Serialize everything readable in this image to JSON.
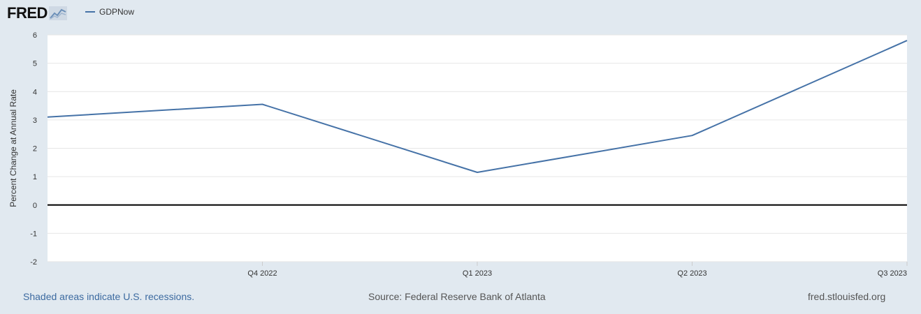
{
  "logo": {
    "text": "FRED"
  },
  "colors": {
    "series": "#4572a7",
    "zero_line": "#000000",
    "grid": "#e6e6e6",
    "plot_background": "#ffffff",
    "page_background": "#e1e9f0",
    "footer_link": "#3c6aa0"
  },
  "icons": {
    "logo_mark": "line-chart-icon"
  },
  "footer": {
    "note": "Shaded areas indicate U.S. recessions.",
    "source": "Source: Federal Reserve Bank of Atlanta",
    "url": "fred.stlouisfed.org"
  },
  "chart_data": {
    "type": "line",
    "title": "",
    "xlabel": "",
    "ylabel": "Percent Change at Annual Rate",
    "x": [
      "2022-Q3",
      "2022-Q4",
      "2023-Q1",
      "2023-Q2",
      "2023-Q3"
    ],
    "x_tick_labels": [
      "Q4 2022",
      "Q1 2023",
      "Q2 2023",
      "Q3 2023"
    ],
    "y_ticks": [
      "6",
      "5",
      "4",
      "3",
      "2",
      "1",
      "0",
      "-1",
      "-2"
    ],
    "ylim": [
      -2,
      6
    ],
    "grid": true,
    "legend_position": "top-left",
    "series": [
      {
        "name": "GDPNow",
        "values": [
          3.1,
          3.55,
          1.15,
          2.45,
          5.8
        ]
      }
    ]
  }
}
